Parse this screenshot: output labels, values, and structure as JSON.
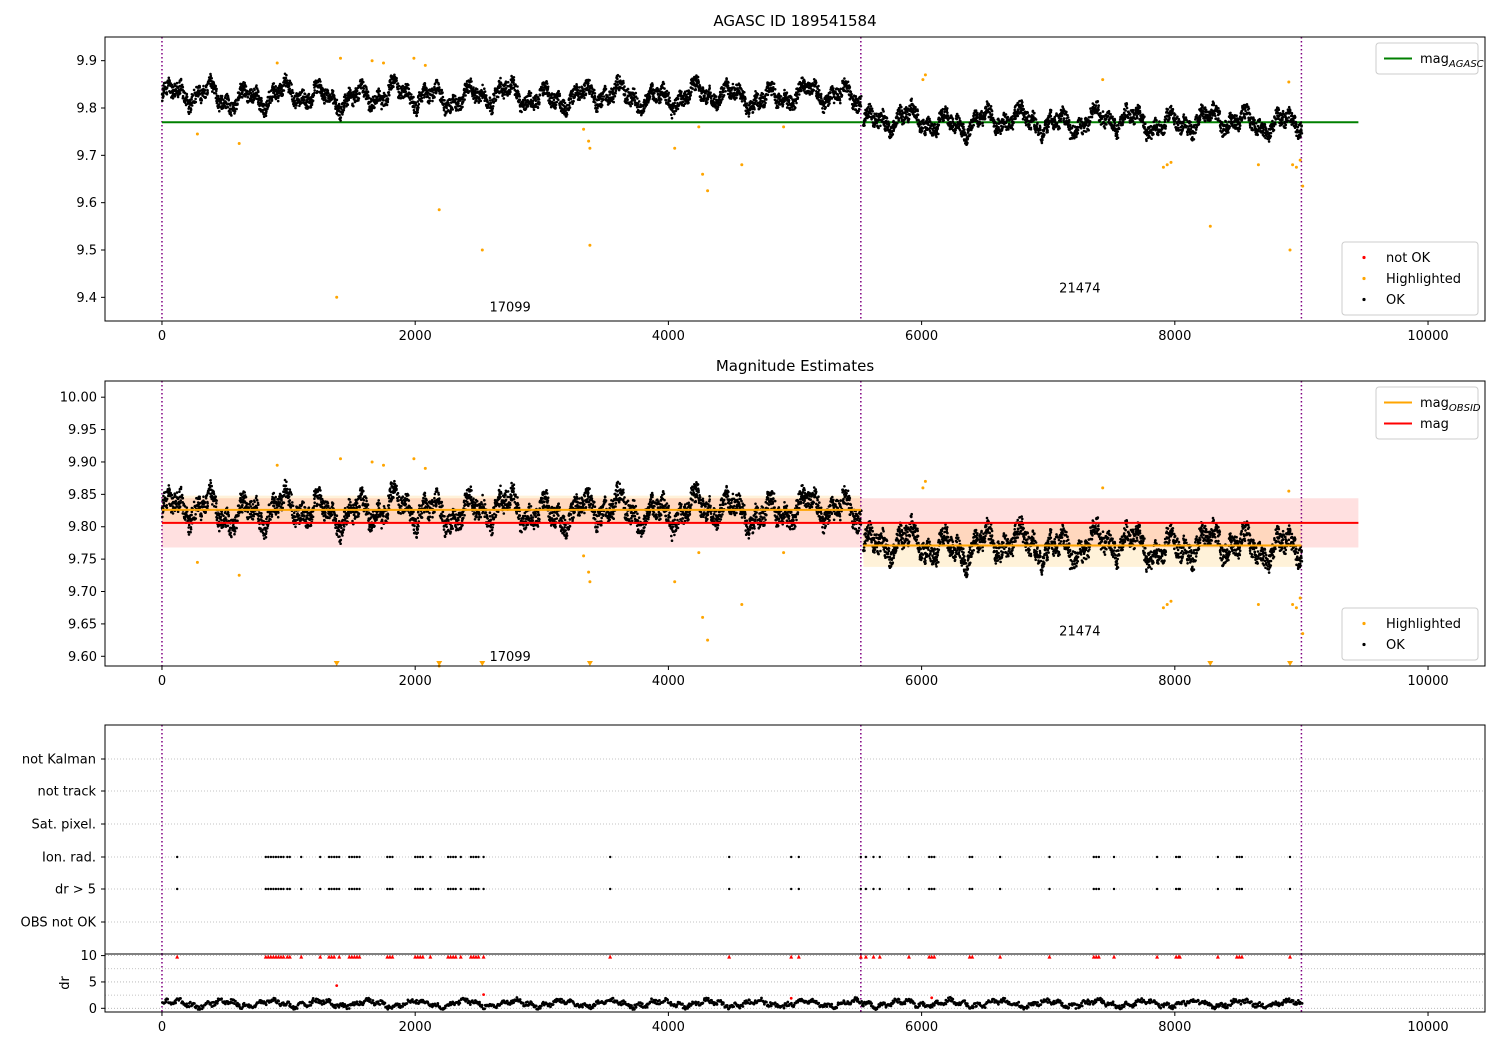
{
  "figure": {
    "top_title": "AGASC ID 189541584",
    "middle_title": "Magnitude Estimates"
  },
  "chart_data": [
    {
      "id": "mag-agasc",
      "type": "scatter",
      "title": "AGASC ID 189541584",
      "xlim": [
        -450,
        10450
      ],
      "ylim": [
        9.35,
        9.95
      ],
      "x_ticks": [
        0,
        2000,
        4000,
        6000,
        8000,
        10000
      ],
      "y_ticks": [
        9.4,
        9.5,
        9.6,
        9.7,
        9.8,
        9.9
      ],
      "grid": false,
      "obs_boundaries": [
        0,
        5520,
        9000
      ],
      "obs_labels": [
        {
          "text": "17099",
          "x": 2750,
          "y": 9.37
        },
        {
          "text": "21474",
          "x": 7250,
          "y": 9.41
        }
      ],
      "reference_lines": [
        {
          "name": "mag_AGASC",
          "value": 9.77,
          "x": [
            0,
            9450
          ],
          "color": "#008000"
        }
      ],
      "series_colors": {
        "not OK": "#ff0000",
        "Highlighted": "#ffa500",
        "OK": "#000000"
      },
      "segments": [
        {
          "x": [
            0,
            5520
          ],
          "mean": 9.825,
          "amplitude": 0.03
        },
        {
          "x": [
            5540,
            9000
          ],
          "mean": 9.772,
          "amplitude": 0.03
        }
      ],
      "highlighted_points": [
        [
          280,
          9.745
        ],
        [
          610,
          9.725
        ],
        [
          910,
          9.895
        ],
        [
          1380,
          9.4
        ],
        [
          1410,
          9.905
        ],
        [
          1660,
          9.9
        ],
        [
          1750,
          9.895
        ],
        [
          1990,
          9.905
        ],
        [
          2080,
          9.89
        ],
        [
          2190,
          9.585
        ],
        [
          2530,
          9.5
        ],
        [
          3330,
          9.755
        ],
        [
          3370,
          9.73
        ],
        [
          3380,
          9.715
        ],
        [
          3380,
          9.51
        ],
        [
          4050,
          9.715
        ],
        [
          4240,
          9.76
        ],
        [
          4270,
          9.66
        ],
        [
          4310,
          9.625
        ],
        [
          4580,
          9.68
        ],
        [
          4910,
          9.76
        ],
        [
          6010,
          9.86
        ],
        [
          6030,
          9.87
        ],
        [
          7430,
          9.86
        ],
        [
          7910,
          9.675
        ],
        [
          7940,
          9.68
        ],
        [
          7970,
          9.685
        ],
        [
          8280,
          9.55
        ],
        [
          8660,
          9.68
        ],
        [
          8900,
          9.855
        ],
        [
          8910,
          9.5
        ],
        [
          8930,
          9.68
        ],
        [
          8960,
          9.675
        ],
        [
          8990,
          9.69
        ],
        [
          9010,
          9.635
        ]
      ],
      "legends": [
        {
          "position": "top-right",
          "entries": [
            {
              "label": "mag",
              "sub": "AGASC",
              "color": "#008000",
              "kind": "line"
            }
          ]
        },
        {
          "position": "lower-right",
          "entries": [
            {
              "label": "not OK",
              "color": "#ff0000",
              "kind": "point"
            },
            {
              "label": "Highlighted",
              "color": "#ffa500",
              "kind": "point"
            },
            {
              "label": "OK",
              "color": "#000000",
              "kind": "point"
            }
          ]
        }
      ]
    },
    {
      "id": "mag-estimates",
      "type": "scatter",
      "title": "Magnitude Estimates",
      "xlim": [
        -450,
        10450
      ],
      "ylim": [
        9.585,
        10.025
      ],
      "x_ticks": [
        0,
        2000,
        4000,
        6000,
        8000,
        10000
      ],
      "y_ticks": [
        9.6,
        9.65,
        9.7,
        9.75,
        9.8,
        9.85,
        9.9,
        9.95,
        10.0
      ],
      "grid": false,
      "obs_boundaries": [
        0,
        5520,
        9000
      ],
      "obs_labels": [
        {
          "text": "17099",
          "x": 2750,
          "y": 9.593
        },
        {
          "text": "21474",
          "x": 7250,
          "y": 9.632
        }
      ],
      "reference_lines": [
        {
          "name": "mag",
          "value": 9.806,
          "x": [
            0,
            9450
          ],
          "color": "#ff0000",
          "band": [
            9.768,
            9.844
          ]
        },
        {
          "name": "mag_OBSID",
          "value": 9.826,
          "x": [
            0,
            5520
          ],
          "color": "#ffa500",
          "band": [
            9.804,
            9.848
          ]
        },
        {
          "name": "mag_OBSID",
          "value": 9.771,
          "x": [
            5540,
            9000
          ],
          "color": "#ffa500",
          "band": [
            9.738,
            9.804
          ]
        }
      ],
      "clipped_markers_x": [
        1380,
        2190,
        2530,
        3380,
        8280,
        8910
      ],
      "legends": [
        {
          "position": "top-right",
          "entries": [
            {
              "label": "mag",
              "sub": "OBSID",
              "color": "#ffa500",
              "kind": "line"
            },
            {
              "label": "mag",
              "sub": "",
              "color": "#ff0000",
              "kind": "line"
            }
          ]
        },
        {
          "position": "lower-right",
          "entries": [
            {
              "label": "Highlighted",
              "color": "#ffa500",
              "kind": "point"
            },
            {
              "label": "OK",
              "color": "#000000",
              "kind": "point"
            }
          ]
        }
      ]
    },
    {
      "id": "flags",
      "type": "scatter",
      "xlim": [
        -450,
        10450
      ],
      "categories": [
        "not Kalman",
        "not track",
        "Sat. pixel.",
        "Ion. rad.",
        "dr > 5",
        "OBS not OK"
      ],
      "grid": true,
      "obs_boundaries": [
        0,
        5520,
        9000
      ],
      "flag_x": [
        120,
        820,
        840,
        860,
        880,
        900,
        920,
        940,
        960,
        990,
        1010,
        1100,
        1250,
        1320,
        1340,
        1360,
        1380,
        1400,
        1480,
        1500,
        1520,
        1540,
        1560,
        1780,
        1800,
        1820,
        2000,
        2020,
        2040,
        2060,
        2120,
        2260,
        2280,
        2300,
        2320,
        2360,
        2440,
        2460,
        2480,
        2500,
        2540,
        3540,
        4480,
        4970,
        5030,
        5520,
        5560,
        5620,
        5670,
        5900,
        6060,
        6080,
        6100,
        6380,
        6400,
        6620,
        7010,
        7360,
        7380,
        7400,
        7520,
        7860,
        8010,
        8030,
        8040,
        8340,
        8490,
        8510,
        8530,
        8910
      ]
    },
    {
      "id": "dr",
      "type": "scatter",
      "xlim": [
        -450,
        10450
      ],
      "ylim": [
        -0.7,
        10.3
      ],
      "ylabel": "dr",
      "x_ticks": [
        0,
        2000,
        4000,
        6000,
        8000,
        10000
      ],
      "y_ticks": [
        0,
        5,
        10
      ],
      "grid": true,
      "obs_boundaries": [
        0,
        5520,
        9000
      ],
      "clipped_markers_x": [
        120,
        820,
        840,
        860,
        880,
        900,
        920,
        940,
        960,
        990,
        1010,
        1100,
        1250,
        1320,
        1340,
        1360,
        1400,
        1480,
        1500,
        1520,
        1540,
        1560,
        1780,
        1800,
        1820,
        2000,
        2020,
        2040,
        2060,
        2120,
        2260,
        2280,
        2300,
        2320,
        2360,
        2440,
        2460,
        2480,
        2500,
        2540,
        3540,
        4480,
        4970,
        5030,
        5520,
        5560,
        5620,
        5670,
        5900,
        6060,
        6080,
        6100,
        6380,
        6400,
        6620,
        7010,
        7360,
        7380,
        7400,
        7520,
        7860,
        8010,
        8030,
        8040,
        8340,
        8490,
        8510,
        8530,
        8910
      ],
      "extra_points": [
        [
          1380,
          4.3
        ],
        [
          2540,
          2.6
        ],
        [
          4970,
          1.9
        ],
        [
          6080,
          2.0
        ]
      ]
    }
  ]
}
